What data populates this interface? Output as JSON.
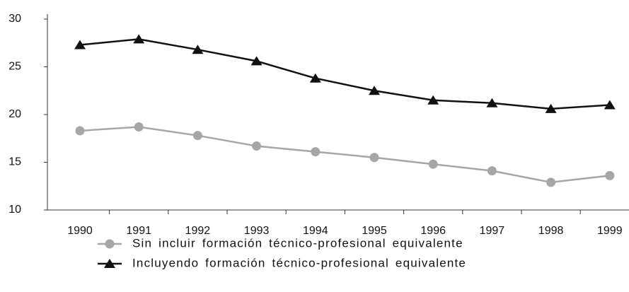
{
  "chart_data": {
    "type": "line",
    "categories": [
      "1990",
      "1991",
      "1992",
      "1993",
      "1994",
      "1995",
      "1996",
      "1997",
      "1998",
      "1999"
    ],
    "series": [
      {
        "name": "Sin incluir formación técnico-profesional equivalente",
        "color": "#a6a6a6",
        "marker": "circle",
        "values": [
          18.3,
          18.7,
          17.8,
          16.7,
          16.1,
          15.5,
          14.8,
          14.1,
          12.9,
          13.6
        ]
      },
      {
        "name": "Incluyendo formación técnico-profesional equivalente",
        "color": "#111111",
        "marker": "triangle",
        "values": [
          27.3,
          27.9,
          26.8,
          25.6,
          23.8,
          22.5,
          21.5,
          21.2,
          20.6,
          21.0
        ]
      }
    ],
    "ylim": [
      10,
      30
    ],
    "yticks": [
      10,
      15,
      20,
      25,
      30
    ],
    "grid": false,
    "legend": "bottom"
  }
}
